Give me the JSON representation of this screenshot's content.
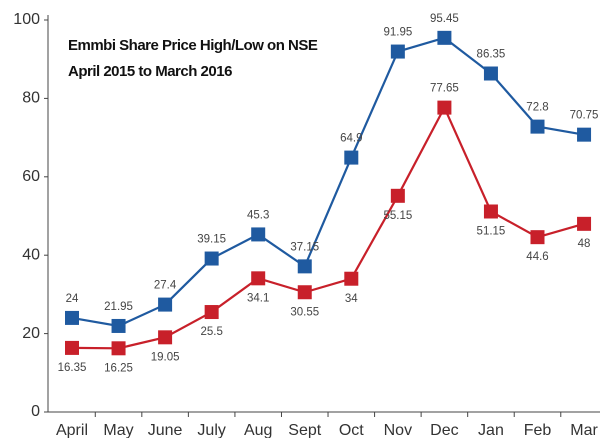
{
  "chart_data": {
    "type": "line",
    "title": "Emmbi Share Price High/Low on NSE",
    "subtitle": "April 2015 to March 2016",
    "categories": [
      "April",
      "May",
      "June",
      "July",
      "Aug",
      "Sept",
      "Oct",
      "Nov",
      "Dec",
      "Jan",
      "Feb",
      "Mar"
    ],
    "series": [
      {
        "color": "#1f5aa0",
        "values": [
          24,
          21.95,
          27.4,
          39.15,
          45.3,
          37.15,
          64.9,
          91.95,
          95.45,
          86.35,
          72.8,
          70.75
        ]
      },
      {
        "color": "#c8202a",
        "values": [
          16.35,
          16.25,
          19.05,
          25.5,
          34.1,
          30.55,
          34,
          55.15,
          77.65,
          51.15,
          44.6,
          48
        ]
      }
    ],
    "ylim": [
      0,
      100
    ],
    "yticks": [
      0,
      20,
      40,
      60,
      80,
      100
    ],
    "grid": false
  }
}
